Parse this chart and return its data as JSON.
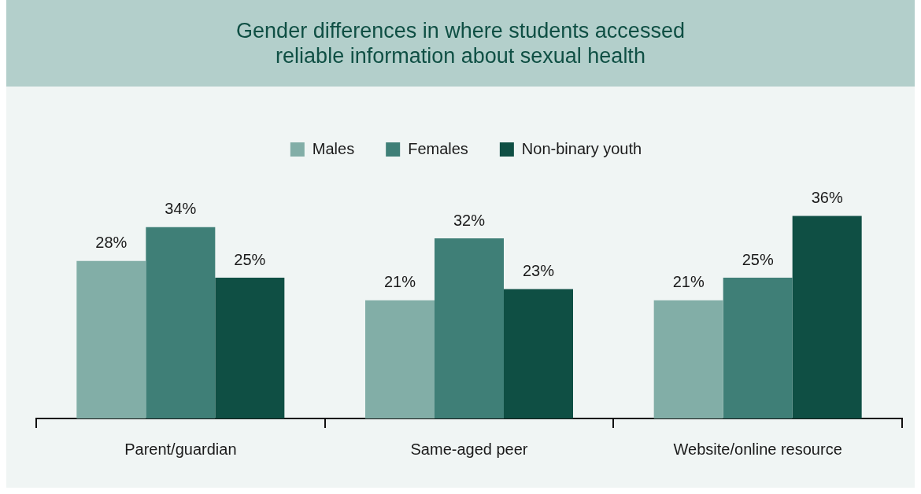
{
  "chart_data": {
    "type": "bar",
    "title": "Gender differences in where students accessed reliable information about sexual health",
    "categories": [
      "Parent/guardian",
      "Same-aged peer",
      "Website/online resource"
    ],
    "series": [
      {
        "name": "Males",
        "color": "#82aea7",
        "values": [
          28,
          21,
          21
        ],
        "value_labels": [
          "28%",
          "21%",
          "21%"
        ]
      },
      {
        "name": "Females",
        "color": "#3f7f77",
        "values": [
          34,
          32,
          25
        ],
        "value_labels": [
          "34%",
          "32%",
          "25%"
        ]
      },
      {
        "name": "Non-binary youth",
        "color": "#0f4f44",
        "values": [
          25,
          23,
          36
        ],
        "value_labels": [
          "25%",
          "23%",
          "36%"
        ]
      }
    ],
    "legend": "top"
  }
}
